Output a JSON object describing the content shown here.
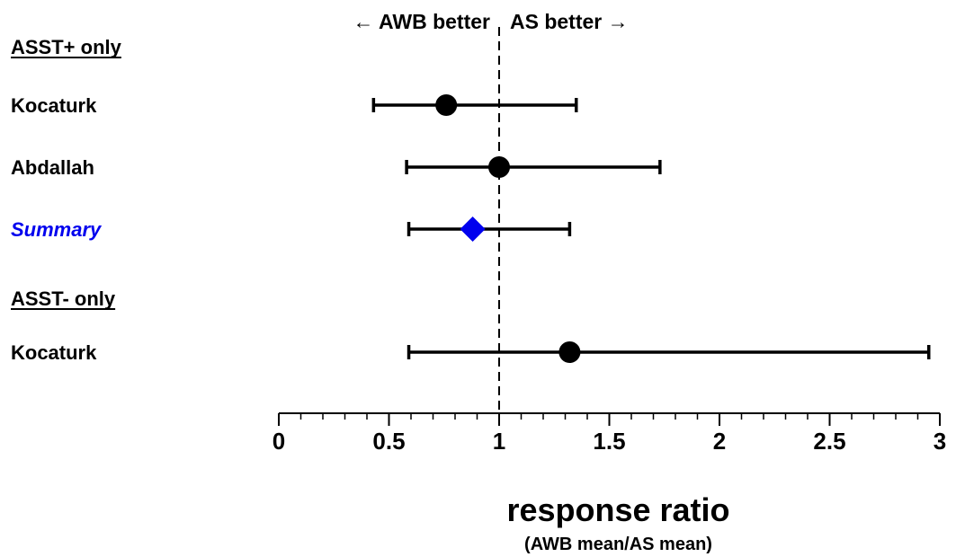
{
  "chart_data": {
    "type": "forest",
    "direction_labels": {
      "left": "← AWB better",
      "right": "AS better →"
    },
    "reference_line": 1,
    "xlim": [
      0,
      3
    ],
    "x_ticks": [
      {
        "value": 0,
        "label": "0"
      },
      {
        "value": 0.5,
        "label": "0.5"
      },
      {
        "value": 1,
        "label": "1"
      },
      {
        "value": 1.5,
        "label": "1.5"
      },
      {
        "value": 2,
        "label": "2"
      },
      {
        "value": 2.5,
        "label": "2.5"
      },
      {
        "value": 3,
        "label": "3"
      }
    ],
    "minor_tick_step": 0.1,
    "xlabel": "response ratio",
    "xlabel_sub": "(AWB mean/AS mean)",
    "rows": [
      {
        "kind": "header",
        "label": "ASST+ only"
      },
      {
        "kind": "study",
        "label": "Kocaturk",
        "estimate": 0.76,
        "ci_low": 0.43,
        "ci_high": 1.35,
        "marker": "circle",
        "color": "#000000"
      },
      {
        "kind": "study",
        "label": "Abdallah",
        "estimate": 1.0,
        "ci_low": 0.58,
        "ci_high": 1.73,
        "marker": "circle",
        "color": "#000000"
      },
      {
        "kind": "summary",
        "label": "Summary",
        "estimate": 0.88,
        "ci_low": 0.59,
        "ci_high": 1.32,
        "marker": "diamond",
        "color": "#0000ee"
      },
      {
        "kind": "header",
        "label": "ASST- only"
      },
      {
        "kind": "study",
        "label": "Kocaturk",
        "estimate": 1.32,
        "ci_low": 0.59,
        "ci_high": 2.95,
        "marker": "circle",
        "color": "#000000"
      }
    ]
  }
}
